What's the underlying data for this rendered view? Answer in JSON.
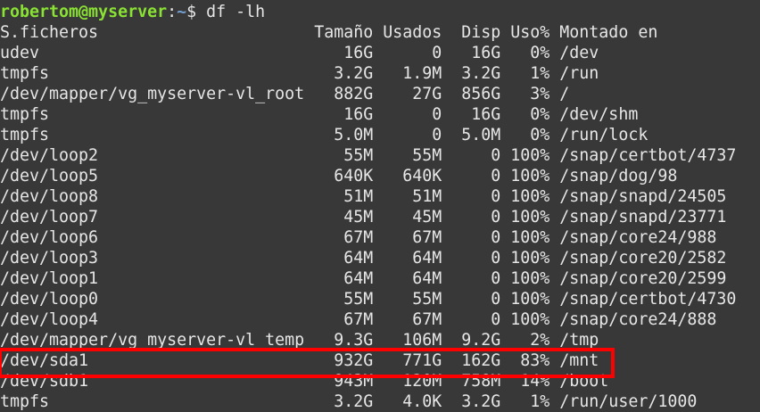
{
  "prompt": {
    "user_host": "robertom@myserver",
    "separator": ":",
    "path": "~",
    "symbol": "$ ",
    "command": "df -lh"
  },
  "header": [
    "S.ficheros",
    "Tamaño",
    "Usados",
    "Disp",
    "Uso%",
    "Montado en"
  ],
  "rows": [
    [
      "udev",
      "16G",
      "0",
      "16G",
      "0%",
      "/dev"
    ],
    [
      "tmpfs",
      "3.2G",
      "1.9M",
      "3.2G",
      "1%",
      "/run"
    ],
    [
      "/dev/mapper/vg_myserver-vl_root",
      "882G",
      "27G",
      "856G",
      "3%",
      "/"
    ],
    [
      "tmpfs",
      "16G",
      "0",
      "16G",
      "0%",
      "/dev/shm"
    ],
    [
      "tmpfs",
      "5.0M",
      "0",
      "5.0M",
      "0%",
      "/run/lock"
    ],
    [
      "/dev/loop2",
      "55M",
      "55M",
      "0",
      "100%",
      "/snap/certbot/4737"
    ],
    [
      "/dev/loop5",
      "640K",
      "640K",
      "0",
      "100%",
      "/snap/dog/98"
    ],
    [
      "/dev/loop8",
      "51M",
      "51M",
      "0",
      "100%",
      "/snap/snapd/24505"
    ],
    [
      "/dev/loop7",
      "45M",
      "45M",
      "0",
      "100%",
      "/snap/snapd/23771"
    ],
    [
      "/dev/loop6",
      "67M",
      "67M",
      "0",
      "100%",
      "/snap/core24/988"
    ],
    [
      "/dev/loop3",
      "64M",
      "64M",
      "0",
      "100%",
      "/snap/core20/2582"
    ],
    [
      "/dev/loop1",
      "64M",
      "64M",
      "0",
      "100%",
      "/snap/core20/2599"
    ],
    [
      "/dev/loop0",
      "55M",
      "55M",
      "0",
      "100%",
      "/snap/certbot/4730"
    ],
    [
      "/dev/loop4",
      "67M",
      "67M",
      "0",
      "100%",
      "/snap/core24/888"
    ],
    [
      "/dev/mapper/vg_myserver-vl_temp",
      "9.3G",
      "106M",
      "9.2G",
      "2%",
      "/tmp"
    ],
    [
      "/dev/sda1",
      "932G",
      "771G",
      "162G",
      "83%",
      "/mnt"
    ],
    [
      "/dev/sdb1",
      "943M",
      "120M",
      "758M",
      "14%",
      "/boot"
    ],
    [
      "tmpfs",
      "3.2G",
      "4.0K",
      "3.2G",
      "1%",
      "/run/user/1000"
    ]
  ],
  "highlight": {
    "row": "/dev/sda1",
    "color": "#ff0000"
  },
  "colors": {
    "background": "#383838",
    "text": "#e6e6e6",
    "user_host": "#8ae234",
    "path": "#729fcf"
  }
}
